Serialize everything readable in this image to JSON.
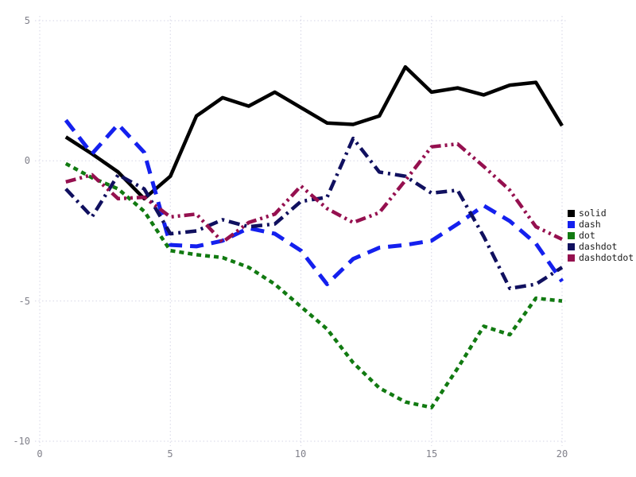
{
  "chart_data": {
    "type": "line",
    "title": "",
    "xlabel": "",
    "ylabel": "",
    "x": [
      1,
      2,
      3,
      4,
      5,
      6,
      7,
      8,
      9,
      10,
      11,
      12,
      13,
      14,
      15,
      16,
      17,
      18,
      19,
      20
    ],
    "series": [
      {
        "name": "solid",
        "style": "solid",
        "color": "#000000",
        "values": [
          0.85,
          0.25,
          -0.4,
          -1.35,
          -0.55,
          1.6,
          2.25,
          1.95,
          2.45,
          1.9,
          1.35,
          1.3,
          1.6,
          3.35,
          2.45,
          2.6,
          2.35,
          2.7,
          2.8,
          1.25
        ]
      },
      {
        "name": "dash",
        "style": "dash",
        "color": "#1420ee",
        "values": [
          1.45,
          0.25,
          1.3,
          0.3,
          -3.0,
          -3.05,
          -2.85,
          -2.4,
          -2.6,
          -3.2,
          -4.4,
          -3.5,
          -3.1,
          -3.0,
          -2.85,
          -2.25,
          -1.6,
          -2.15,
          -2.95,
          -4.3
        ]
      },
      {
        "name": "dot",
        "style": "dot",
        "color": "#117a11",
        "values": [
          -0.1,
          -0.6,
          -1.0,
          -1.8,
          -3.2,
          -3.35,
          -3.45,
          -3.8,
          -4.4,
          -5.2,
          -6.0,
          -7.2,
          -8.1,
          -8.6,
          -8.8,
          -7.4,
          -5.9,
          -6.2,
          -4.9,
          -5.0
        ]
      },
      {
        "name": "dashdot",
        "style": "dashdot",
        "color": "#10105f",
        "values": [
          -1.0,
          -2.0,
          -0.5,
          -1.0,
          -2.6,
          -2.5,
          -2.1,
          -2.35,
          -2.25,
          -1.45,
          -1.3,
          0.8,
          -0.4,
          -0.55,
          -1.15,
          -1.05,
          -2.7,
          -4.55,
          -4.4,
          -3.8
        ]
      },
      {
        "name": "dashdotdot",
        "style": "dashdotdot",
        "color": "#95104f",
        "values": [
          -0.75,
          -0.5,
          -1.35,
          -1.3,
          -2.0,
          -1.9,
          -2.9,
          -2.2,
          -1.9,
          -0.9,
          -1.7,
          -2.2,
          -1.85,
          -0.7,
          0.5,
          0.6,
          -0.2,
          -1.05,
          -2.35,
          -2.8
        ]
      }
    ],
    "xticks": [
      "0",
      "5",
      "10",
      "15",
      "20"
    ],
    "yticks": [
      "5",
      "0",
      "-5",
      "-10"
    ],
    "xtick_values": [
      0,
      5,
      10,
      15,
      20
    ],
    "ytick_values": [
      5,
      0,
      -5,
      -10
    ],
    "xlim": [
      0,
      20
    ],
    "ylim": [
      -10,
      5
    ],
    "grid": true,
    "legend_position": "right",
    "legend_labels": [
      "solid",
      "dash",
      "dot",
      "dashdot",
      "dashdotdot"
    ]
  },
  "colors": {
    "background": "#ffffff",
    "gridline": "#d6d6e6",
    "tick_label": "#80808a",
    "legend_text": "#1a1a1a"
  }
}
